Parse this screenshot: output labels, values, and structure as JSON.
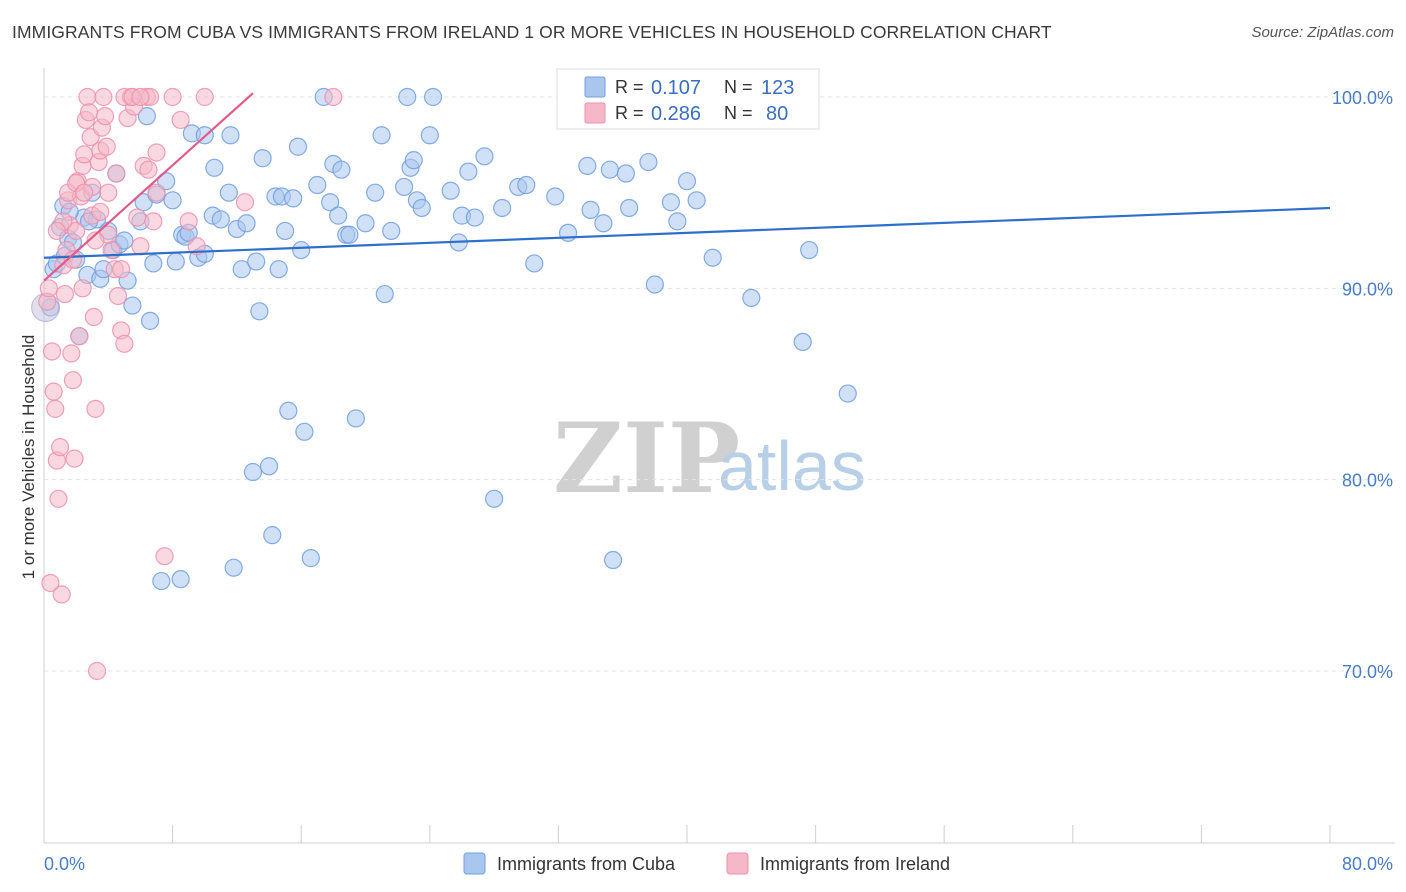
{
  "title": "IMMIGRANTS FROM CUBA VS IMMIGRANTS FROM IRELAND 1 OR MORE VEHICLES IN HOUSEHOLD CORRELATION CHART",
  "source": "Source: ZipAtlas.com",
  "watermark": {
    "zip": "ZIP",
    "atlas": "atlas"
  },
  "legend_top": {
    "rows": [
      {
        "r_label": "R =",
        "r_value": "0.107",
        "n_label": "N =",
        "n_value": "123",
        "color": "#a9c6ee"
      },
      {
        "r_label": "R =",
        "r_value": "0.286",
        "n_label": "N =",
        "n_value": "80",
        "color": "#f4b8c8"
      }
    ]
  },
  "legend_bottom": {
    "items": [
      {
        "label": "Immigrants from Cuba",
        "color": "#a9c6ee"
      },
      {
        "label": "Immigrants from Ireland",
        "color": "#f4b8c8"
      }
    ]
  },
  "chart_data": {
    "type": "scatter",
    "title": "IMMIGRANTS FROM CUBA VS IMMIGRANTS FROM IRELAND 1 OR MORE VEHICLES IN HOUSEHOLD CORRELATION CHART",
    "xlabel": "",
    "ylabel": "1 or more Vehicles in Household",
    "xlim": [
      0,
      80
    ],
    "ylim": [
      60,
      101.5
    ],
    "x_tick_labels": [
      "0.0%",
      "80.0%"
    ],
    "y_ticks": [
      100,
      90,
      80,
      70
    ],
    "y_tick_labels": [
      "100.0%",
      "90.0%",
      "80.0%",
      "70.0%"
    ],
    "grid": true,
    "legend_position": "top-center",
    "series": [
      {
        "name": "Immigrants from Cuba",
        "color": "#6f9fe0",
        "fill": "#a9c6ee",
        "trend": {
          "x": [
            0,
            80
          ],
          "y": [
            91.6,
            94.2
          ],
          "color": "#2f6fcc"
        },
        "points": [
          [
            0.6,
            91.0
          ],
          [
            0.8,
            91.3
          ],
          [
            1.0,
            93.2
          ],
          [
            1.2,
            94.3
          ],
          [
            1.3,
            91.7
          ],
          [
            1.5,
            92.6
          ],
          [
            1.8,
            92.4
          ],
          [
            2.0,
            91.5
          ],
          [
            2.2,
            87.5
          ],
          [
            2.5,
            93.7
          ],
          [
            2.7,
            90.7
          ],
          [
            3.0,
            95.0
          ],
          [
            3.3,
            93.6
          ],
          [
            3.5,
            90.5
          ],
          [
            3.7,
            91.0
          ],
          [
            4.0,
            93.0
          ],
          [
            4.3,
            92.0
          ],
          [
            4.5,
            96.0
          ],
          [
            4.7,
            92.3
          ],
          [
            5.0,
            92.5
          ],
          [
            5.2,
            90.4
          ],
          [
            5.5,
            89.1
          ],
          [
            6.0,
            93.5
          ],
          [
            6.2,
            94.5
          ],
          [
            6.4,
            99.0
          ],
          [
            6.6,
            88.3
          ],
          [
            6.8,
            91.3
          ],
          [
            7.0,
            94.9
          ],
          [
            7.3,
            74.7
          ],
          [
            7.6,
            95.6
          ],
          [
            8.0,
            94.6
          ],
          [
            8.2,
            91.4
          ],
          [
            8.5,
            74.8
          ],
          [
            8.6,
            92.8
          ],
          [
            8.8,
            92.7
          ],
          [
            9.0,
            92.9
          ],
          [
            9.2,
            98.1
          ],
          [
            9.6,
            91.6
          ],
          [
            10.0,
            98.0
          ],
          [
            10.0,
            91.8
          ],
          [
            10.5,
            93.8
          ],
          [
            10.6,
            96.3
          ],
          [
            11.0,
            93.6
          ],
          [
            11.5,
            95.0
          ],
          [
            11.6,
            98.0
          ],
          [
            11.8,
            75.4
          ],
          [
            12.0,
            93.1
          ],
          [
            12.3,
            91.0
          ],
          [
            12.6,
            93.4
          ],
          [
            13.0,
            80.4
          ],
          [
            13.2,
            91.4
          ],
          [
            13.4,
            88.8
          ],
          [
            13.6,
            96.8
          ],
          [
            14.0,
            80.7
          ],
          [
            14.2,
            77.1
          ],
          [
            14.4,
            94.8
          ],
          [
            14.6,
            91.0
          ],
          [
            14.8,
            94.8
          ],
          [
            15.0,
            93.0
          ],
          [
            15.2,
            83.6
          ],
          [
            15.5,
            94.7
          ],
          [
            15.8,
            97.4
          ],
          [
            16.0,
            92.0
          ],
          [
            16.2,
            82.5
          ],
          [
            16.6,
            75.9
          ],
          [
            17.0,
            95.4
          ],
          [
            17.4,
            100.0
          ],
          [
            17.8,
            94.5
          ],
          [
            18.0,
            96.5
          ],
          [
            18.3,
            93.8
          ],
          [
            18.5,
            96.2
          ],
          [
            18.8,
            92.8
          ],
          [
            19.0,
            92.8
          ],
          [
            19.4,
            83.2
          ],
          [
            20.0,
            93.4
          ],
          [
            20.6,
            95.0
          ],
          [
            21.0,
            98.0
          ],
          [
            21.2,
            89.7
          ],
          [
            21.6,
            93.0
          ],
          [
            22.4,
            95.3
          ],
          [
            22.6,
            100.0
          ],
          [
            22.8,
            96.3
          ],
          [
            23.0,
            96.7
          ],
          [
            23.2,
            94.6
          ],
          [
            23.5,
            94.2
          ],
          [
            24.0,
            98.0
          ],
          [
            24.2,
            100.0
          ],
          [
            25.3,
            95.1
          ],
          [
            25.8,
            92.4
          ],
          [
            26.0,
            93.8
          ],
          [
            26.4,
            96.1
          ],
          [
            26.8,
            93.7
          ],
          [
            27.4,
            96.9
          ],
          [
            28.0,
            79.0
          ],
          [
            28.5,
            94.2
          ],
          [
            29.5,
            95.3
          ],
          [
            30.0,
            95.4
          ],
          [
            30.5,
            91.3
          ],
          [
            31.8,
            94.8
          ],
          [
            32.6,
            92.9
          ],
          [
            32.8,
            100.5
          ],
          [
            33.8,
            96.4
          ],
          [
            34.0,
            94.1
          ],
          [
            34.8,
            93.4
          ],
          [
            35.2,
            96.2
          ],
          [
            35.4,
            75.8
          ],
          [
            36.2,
            96.0
          ],
          [
            36.4,
            94.2
          ],
          [
            37.6,
            96.6
          ],
          [
            38.0,
            90.2
          ],
          [
            39.0,
            94.5
          ],
          [
            39.4,
            93.5
          ],
          [
            40.0,
            95.6
          ],
          [
            40.6,
            94.6
          ],
          [
            41.2,
            100.0
          ],
          [
            41.6,
            91.6
          ],
          [
            44.0,
            89.5
          ],
          [
            47.2,
            87.2
          ],
          [
            47.6,
            92.0
          ],
          [
            50.0,
            84.5
          ],
          [
            0.4,
            89.0
          ],
          [
            1.6,
            94.0
          ],
          [
            2.8,
            93.5
          ]
        ]
      },
      {
        "name": "Immigrants from Ireland",
        "color": "#ef8fab",
        "fill": "#f4b8c8",
        "trend": {
          "x": [
            0,
            13
          ],
          "y": [
            90.4,
            100.2
          ],
          "color": "#e05a8a"
        },
        "points": [
          [
            0.2,
            89.3
          ],
          [
            0.3,
            90.0
          ],
          [
            0.4,
            74.6
          ],
          [
            0.5,
            86.7
          ],
          [
            0.6,
            84.6
          ],
          [
            0.7,
            83.7
          ],
          [
            0.8,
            81.0
          ],
          [
            0.9,
            79.0
          ],
          [
            1.0,
            81.7
          ],
          [
            1.1,
            74.0
          ],
          [
            1.2,
            91.2
          ],
          [
            1.3,
            89.7
          ],
          [
            1.4,
            92.0
          ],
          [
            1.5,
            94.6
          ],
          [
            1.6,
            93.3
          ],
          [
            1.7,
            86.6
          ],
          [
            1.8,
            85.2
          ],
          [
            1.9,
            81.1
          ],
          [
            2.0,
            93.0
          ],
          [
            2.1,
            95.6
          ],
          [
            2.2,
            87.5
          ],
          [
            2.3,
            94.8
          ],
          [
            2.4,
            96.4
          ],
          [
            2.5,
            97.0
          ],
          [
            2.6,
            98.8
          ],
          [
            2.7,
            100.0
          ],
          [
            2.8,
            99.2
          ],
          [
            2.9,
            97.9
          ],
          [
            3.0,
            95.3
          ],
          [
            3.1,
            88.5
          ],
          [
            3.2,
            83.7
          ],
          [
            3.3,
            70.0
          ],
          [
            3.4,
            96.6
          ],
          [
            3.5,
            97.2
          ],
          [
            3.6,
            98.4
          ],
          [
            3.7,
            100.0
          ],
          [
            3.8,
            99.0
          ],
          [
            3.9,
            97.4
          ],
          [
            4.0,
            95.0
          ],
          [
            4.2,
            92.0
          ],
          [
            4.4,
            91.0
          ],
          [
            4.6,
            89.6
          ],
          [
            4.8,
            87.8
          ],
          [
            5.0,
            87.1
          ],
          [
            5.2,
            98.9
          ],
          [
            5.4,
            100.0
          ],
          [
            5.6,
            99.5
          ],
          [
            5.8,
            93.7
          ],
          [
            6.0,
            92.2
          ],
          [
            6.2,
            96.4
          ],
          [
            6.4,
            100.0
          ],
          [
            6.6,
            100.0
          ],
          [
            6.8,
            93.5
          ],
          [
            7.0,
            97.1
          ],
          [
            7.5,
            76.0
          ],
          [
            8.0,
            100.0
          ],
          [
            8.5,
            98.8
          ],
          [
            9.0,
            93.5
          ],
          [
            9.5,
            92.2
          ],
          [
            10.0,
            100.0
          ],
          [
            1.2,
            93.5
          ],
          [
            1.5,
            95.0
          ],
          [
            2.0,
            95.5
          ],
          [
            2.5,
            95.0
          ],
          [
            3.0,
            93.8
          ],
          [
            3.5,
            94.0
          ],
          [
            4.0,
            92.8
          ],
          [
            4.5,
            96.0
          ],
          [
            5.0,
            100.0
          ],
          [
            5.5,
            100.0
          ],
          [
            6.0,
            100.0
          ],
          [
            6.5,
            96.2
          ],
          [
            7.0,
            95.0
          ],
          [
            12.5,
            94.5
          ],
          [
            18.0,
            100.0
          ],
          [
            0.8,
            93.0
          ],
          [
            1.8,
            91.5
          ],
          [
            2.4,
            90.0
          ],
          [
            3.2,
            92.5
          ],
          [
            4.8,
            91.0
          ]
        ]
      }
    ]
  }
}
